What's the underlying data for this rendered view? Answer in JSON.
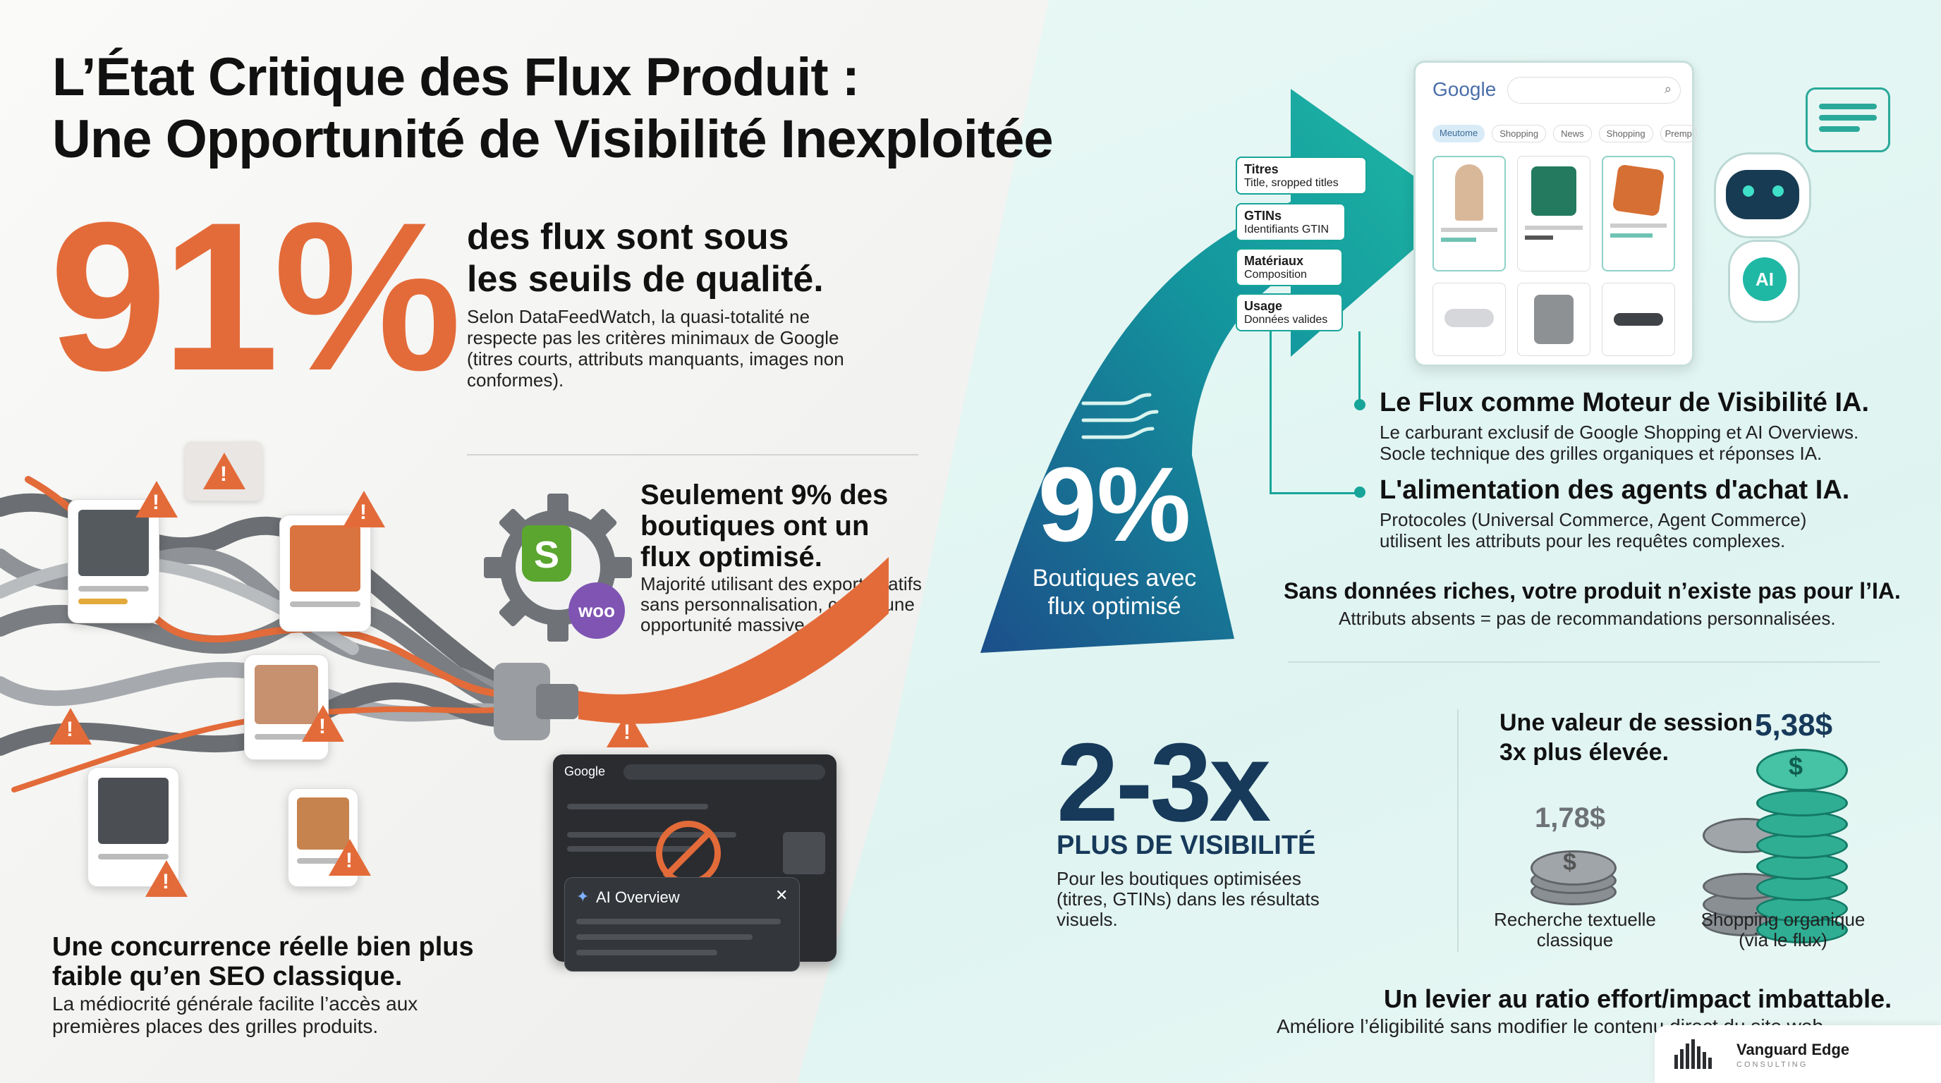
{
  "title": {
    "line1": "L’État Critique des Flux Produit :",
    "line2": "Une Opportunité de Visibilité Inexploitée"
  },
  "stat91": {
    "value": "91%",
    "headline1": "des flux sont sous",
    "headline2": "les seuils de qualité.",
    "body": "Selon DataFeedWatch, la quasi-totalité ne respecte pas les critères minimaux de Google (titres courts, attributs manquants, images non conformes)."
  },
  "stat9left": {
    "headline": "Seulement 9% des boutiques ont un flux optimisé.",
    "body": "Majorité utilisant des exports natifs sans personnalisation, créant une opportunité massive.",
    "woo_label": "woo",
    "shopify_label": "S"
  },
  "competition": {
    "headline": "Une concurrence réelle bien plus faible qu’en SEO classique.",
    "body": "La médiocrité générale facilite l’accès aux premières places des grilles produits."
  },
  "dark_search": {
    "logo": "Google",
    "ai_overview": "AI Overview",
    "close": "✕"
  },
  "arrow": {
    "value": "9%",
    "label1": "Boutiques avec",
    "label2": "flux optimisé"
  },
  "feed_tags": [
    {
      "title": "Titres",
      "sub": "Title, sropped titles"
    },
    {
      "title": "GTINs",
      "sub": "Identifiants GTIN"
    },
    {
      "title": "Matériaux",
      "sub": "Composition"
    },
    {
      "title": "Usage",
      "sub": "Données valides"
    }
  ],
  "google_card": {
    "logo": "Google",
    "tabs": [
      "Meutome",
      "Shopping",
      "News",
      "Shopping",
      "Premp"
    ]
  },
  "robot": {
    "badge": "AI"
  },
  "points": [
    {
      "title": "Le Flux comme Moteur de Visibilité IA.",
      "body1": "Le carburant exclusif de Google Shopping et AI Overviews.",
      "body2": "Socle technique des grilles organiques et réponses IA."
    },
    {
      "title": "L'alimentation des agents d'achat IA.",
      "body1": "Protocoles (Universal Commerce, Agent Commerce)",
      "body2": "utilisent les attributs pour les requêtes complexes."
    }
  ],
  "rich_data": {
    "title": "Sans données riches, votre produit n’existe pas pour l’IA.",
    "body": "Attributs absents = pas de recommandations personnalisées."
  },
  "visibility": {
    "value": "2-3x",
    "label": "PLUS DE VISIBILITÉ",
    "body": "Pour les boutiques optimisées (titres, GTINs) dans les résultats visuels."
  },
  "session": {
    "headline1": "Une valeur de session",
    "headline2": "3x plus élevée.",
    "low_value": "1,78$",
    "low_label1": "Recherche textuelle",
    "low_label2": "classique",
    "high_value": "5,38$",
    "high_label1": "Shopping organique",
    "high_label2": "(via le flux)",
    "coin_symbol": "$"
  },
  "lever": {
    "title": "Un levier au ratio effort/impact imbattable.",
    "body": "Améliore l’éligibilité sans modifier le contenu direct du site web."
  },
  "brand": {
    "name": "Vanguard Edge",
    "sub": "CONSULTING"
  },
  "colors": {
    "orange": "#e36b39",
    "teal": "#17a59a",
    "navy": "#17395a"
  }
}
